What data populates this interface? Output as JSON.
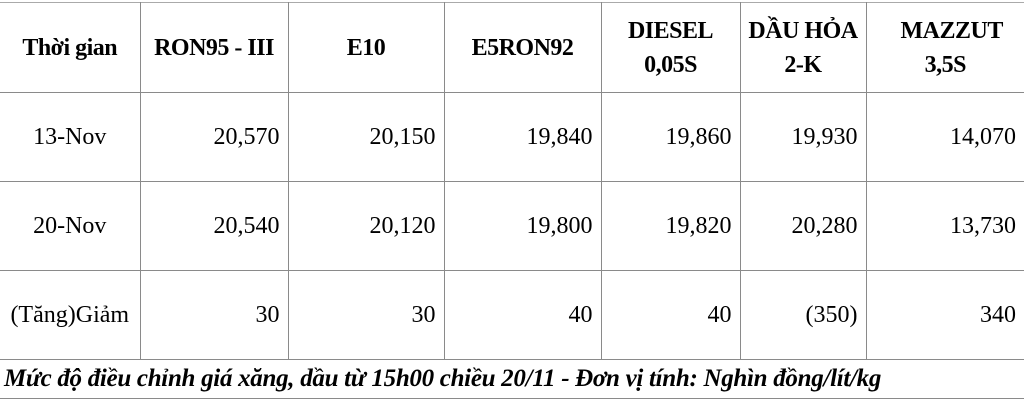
{
  "headers": [
    "Thời gian",
    "RON95 - III",
    "E10",
    "E5RON92",
    "DIESEL 0,05S",
    "DẦU HỎA 2-K",
    "MAZZUT 3,5S"
  ],
  "rows": [
    {
      "label": "13-Nov",
      "values": [
        "20,570",
        "20,150",
        "19,840",
        "19,860",
        "19,930",
        "14,070"
      ]
    },
    {
      "label": "20-Nov",
      "values": [
        "20,540",
        "20,120",
        "19,800",
        "19,820",
        "20,280",
        "13,730"
      ]
    },
    {
      "label": "(Tăng)Giảm",
      "values": [
        "30",
        "30",
        "40",
        "40",
        "(350)",
        "340"
      ]
    }
  ],
  "caption": "Mức độ điều chỉnh giá xăng, dầu từ 15h00 chiều 20/11 - Đơn vị tính: Nghìn đồng/lít/kg"
}
